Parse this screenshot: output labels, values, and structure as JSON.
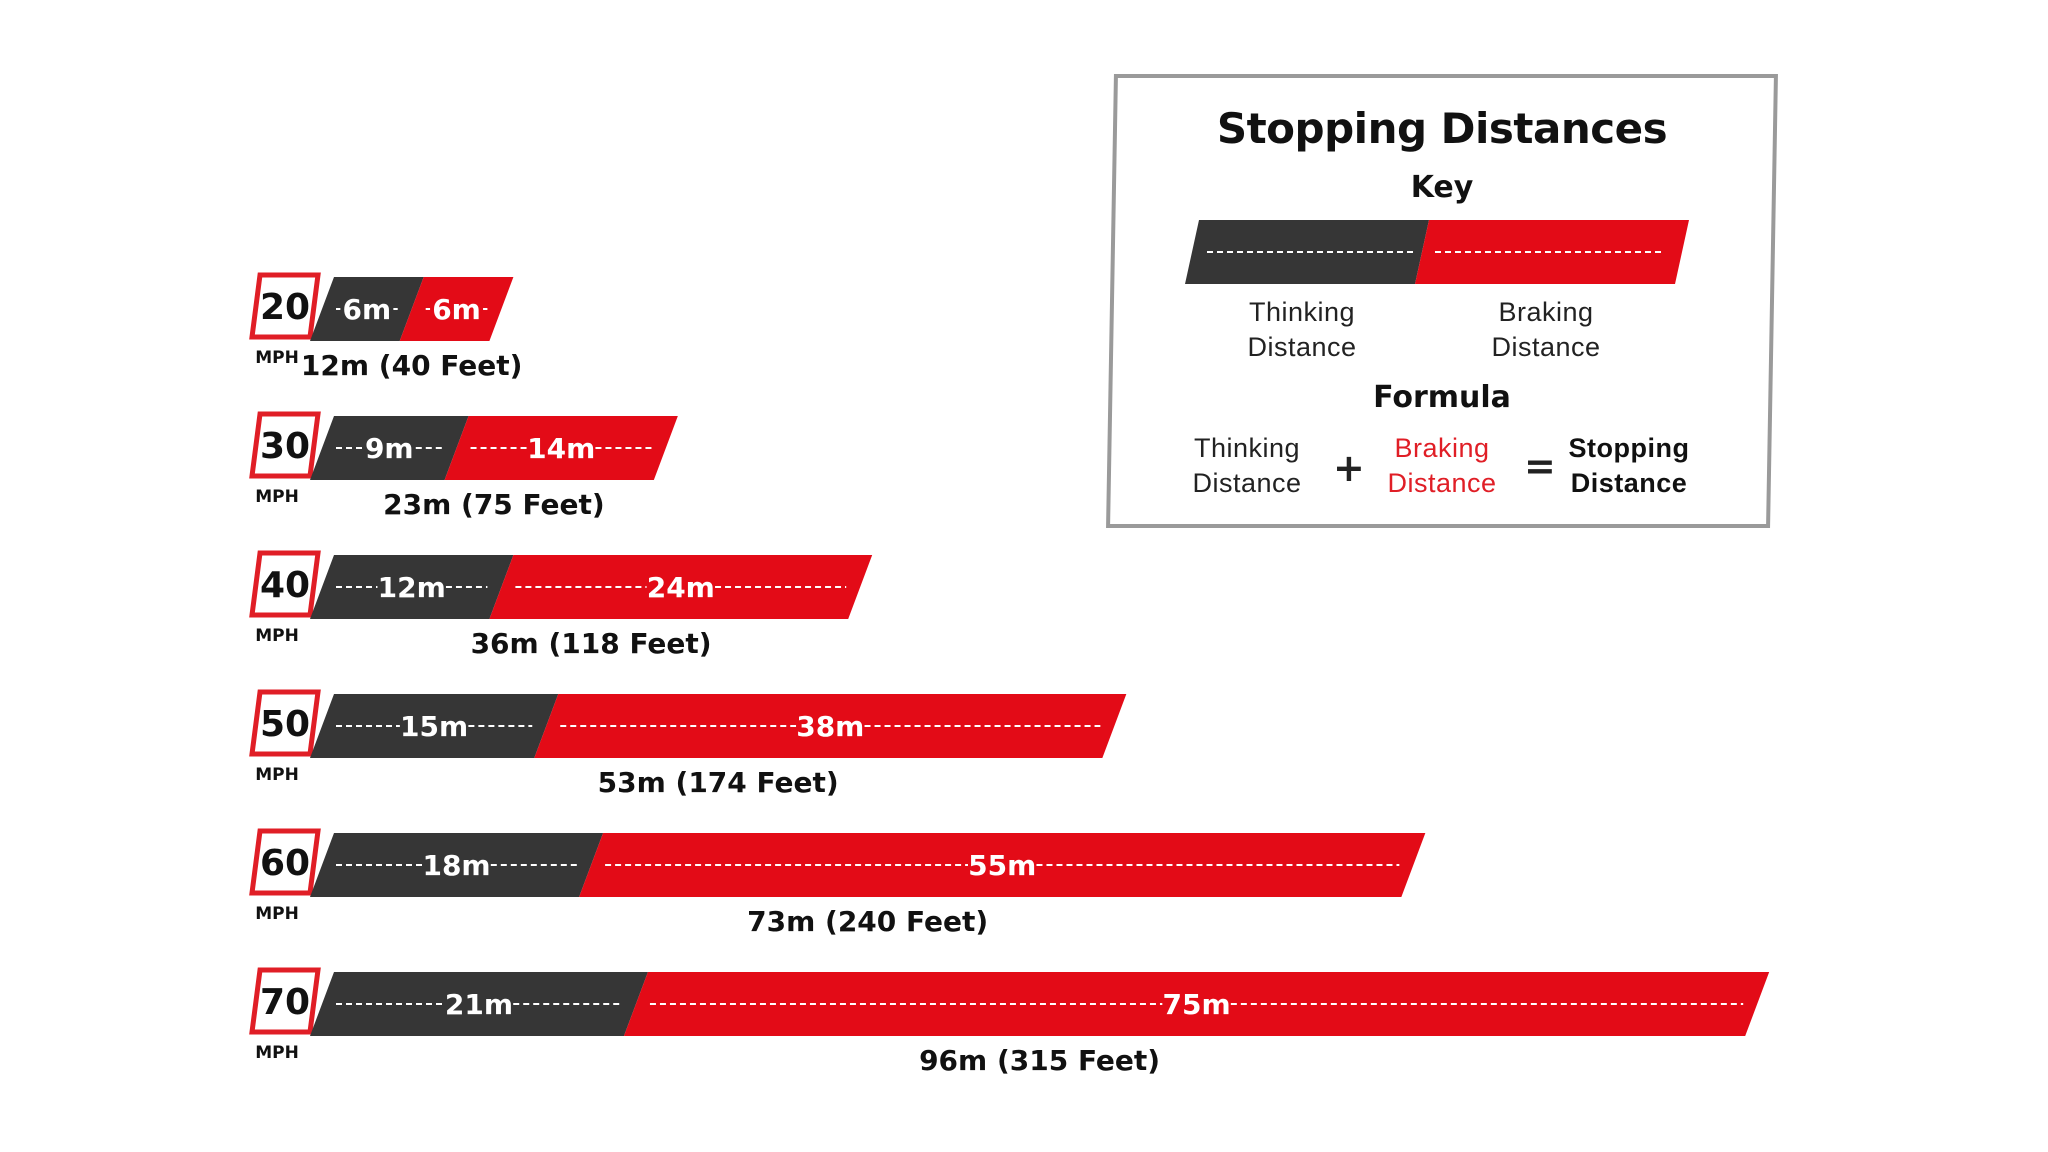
{
  "colors": {
    "thinking": "#363636",
    "braking": "#e30b17",
    "text": "#111111",
    "sign_border": "#e01e26"
  },
  "speed_unit": "MPH",
  "chart_data": {
    "type": "bar",
    "stacked": true,
    "orientation": "horizontal",
    "categories": [
      "20",
      "30",
      "40",
      "50",
      "60",
      "70"
    ],
    "series": [
      {
        "name": "Thinking Distance",
        "values": [
          6,
          9,
          12,
          15,
          18,
          21
        ],
        "labels": [
          "6m",
          "9m",
          "12m",
          "15m",
          "18m",
          "21m"
        ]
      },
      {
        "name": "Braking Distance",
        "values": [
          6,
          14,
          24,
          38,
          55,
          75
        ],
        "labels": [
          "6m",
          "14m",
          "24m",
          "38m",
          "55m",
          "75m"
        ]
      }
    ],
    "totals": [
      "12m (40 Feet)",
      "23m (75 Feet)",
      "36m (118 Feet)",
      "53m (174 Feet)",
      "73m (240 Feet)",
      "96m (315 Feet)"
    ]
  },
  "key": {
    "title": "Stopping Distances",
    "key_heading": "Key",
    "thinking_label": "Thinking\nDistance",
    "braking_label": "Braking\nDistance",
    "formula_heading": "Formula",
    "formula": {
      "term1": "Thinking\nDistance",
      "plus": "+",
      "term2": "Braking\nDistance",
      "equals": "=",
      "result": "Stopping\nDistance"
    }
  }
}
